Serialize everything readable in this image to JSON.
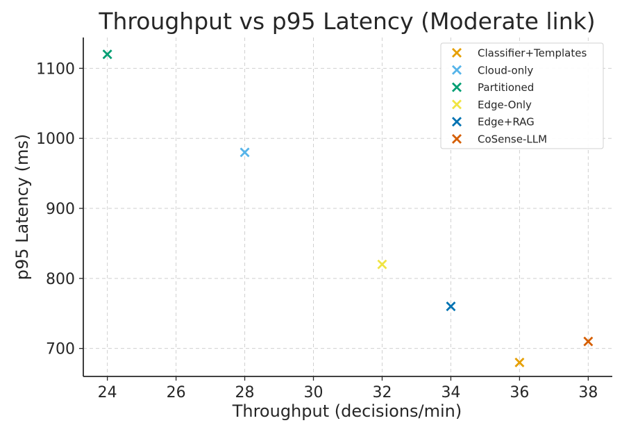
{
  "chart_data": {
    "type": "scatter",
    "title": "Throughput vs p95 Latency (Moderate link)",
    "xlabel": "Throughput (decisions/min)",
    "ylabel": "p95 Latency (ms)",
    "xlim": [
      23.3,
      38.7
    ],
    "ylim": [
      660,
      1144
    ],
    "xticks": [
      24,
      26,
      28,
      30,
      32,
      34,
      36,
      38
    ],
    "yticks": [
      700,
      800,
      900,
      1000,
      1100
    ],
    "grid": true,
    "legend_position": "top-right",
    "marker": "x",
    "series": [
      {
        "name": "Classifier+Templates",
        "color": "#E69F00",
        "x": 36,
        "y": 680
      },
      {
        "name": "Cloud-only",
        "color": "#56B4E9",
        "x": 28,
        "y": 980
      },
      {
        "name": "Partitioned",
        "color": "#009E73",
        "x": 24,
        "y": 1120
      },
      {
        "name": "Edge-Only",
        "color": "#F0E442",
        "x": 32,
        "y": 820
      },
      {
        "name": "Edge+RAG",
        "color": "#0072B2",
        "x": 34,
        "y": 760
      },
      {
        "name": "CoSense-LLM",
        "color": "#D55E00",
        "x": 38,
        "y": 710
      }
    ]
  }
}
